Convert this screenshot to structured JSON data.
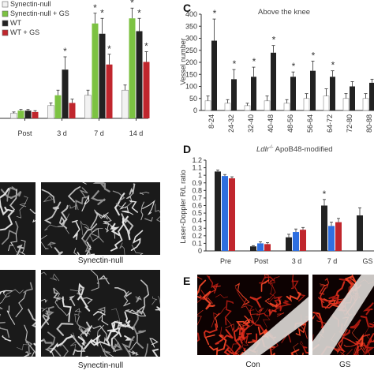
{
  "panels": {
    "c_letter": "C",
    "d_letter": "D",
    "e_letter": "E"
  },
  "legend_b": [
    {
      "label": "Synectin-null",
      "color": "#f2f2f2"
    },
    {
      "label": "Synectin-null + GS",
      "color": "#7cc242"
    },
    {
      "label": "WT",
      "color": "#222222"
    },
    {
      "label": "WT + GS",
      "color": "#c0262d"
    }
  ],
  "micro_captions": {
    "top": "Synectin-null",
    "bottom": "Synectin-null"
  },
  "panel_e_captions": [
    "Con",
    "GS"
  ],
  "chart_data": [
    {
      "id": "B",
      "type": "bar",
      "categories": [
        "Post",
        "3 d",
        "7 d",
        "14 d"
      ],
      "series": [
        {
          "name": "Synectin-null",
          "color": "#f2f2f2",
          "values": [
            0.2,
            0.5,
            0.9,
            1.1
          ]
        },
        {
          "name": "Synectin-null + GS",
          "color": "#7cc242",
          "values": [
            0.3,
            0.9,
            3.7,
            3.9
          ]
        },
        {
          "name": "WT",
          "color": "#222222",
          "values": [
            0.3,
            1.9,
            3.3,
            3.4
          ]
        },
        {
          "name": "WT + GS",
          "color": "#c0262d",
          "values": [
            0.25,
            0.6,
            2.1,
            2.2
          ]
        }
      ],
      "errors": [
        [
          0.05,
          0.1,
          0.2,
          0.2
        ],
        [
          0.05,
          0.2,
          0.4,
          0.4
        ],
        [
          0.05,
          0.5,
          0.6,
          0.5
        ],
        [
          0.05,
          0.15,
          0.4,
          0.4
        ]
      ],
      "stars": [
        [
          1,
          2
        ],
        [
          2,
          1
        ],
        [
          2,
          2
        ],
        [
          2,
          3
        ],
        [
          3,
          1
        ],
        [
          3,
          2
        ],
        [
          3,
          3
        ]
      ],
      "ylim": [
        0,
        4
      ]
    },
    {
      "id": "C",
      "type": "bar",
      "title": "Above the knee",
      "ylabel": "Vessel number",
      "categories": [
        "8-24",
        "24-32",
        "32-40",
        "40-48",
        "48-56",
        "56-64",
        "64-72",
        "72-80",
        "80-88"
      ],
      "series": [
        {
          "name": "",
          "color": "#ffffff",
          "values": [
            40,
            30,
            20,
            40,
            30,
            50,
            60,
            50,
            50
          ]
        },
        {
          "name": "",
          "color": "#222222",
          "values": [
            290,
            130,
            140,
            240,
            140,
            165,
            140,
            100,
            115
          ]
        }
      ],
      "errors": [
        [
          20,
          15,
          10,
          20,
          15,
          20,
          30,
          20,
          20
        ],
        [
          90,
          40,
          40,
          30,
          20,
          40,
          25,
          20,
          15
        ]
      ],
      "stars": [
        1,
        1,
        1,
        1,
        1,
        1,
        1,
        0,
        0
      ],
      "yticks": [
        0,
        50,
        100,
        150,
        200,
        250,
        300,
        350,
        400
      ],
      "ylim": [
        0,
        400
      ]
    },
    {
      "id": "D",
      "type": "bar",
      "title_prefix": "Ldlr",
      "title_sup": "-/-",
      "title_rest": " ApoB48-modified",
      "ylabel": "Laser-Doppler R/L ratio",
      "categories": [
        "Pre",
        "Post",
        "3 d",
        "7 d",
        "GS"
      ],
      "series": [
        {
          "name": "",
          "color": "#222222",
          "values": [
            1.05,
            0.06,
            0.18,
            0.6,
            0.47
          ]
        },
        {
          "name": "",
          "color": "#2f6fe0",
          "values": [
            0.99,
            0.1,
            0.25,
            0.33,
            0
          ]
        },
        {
          "name": "",
          "color": "#c0262d",
          "values": [
            0.96,
            0.09,
            0.28,
            0.38,
            0
          ]
        }
      ],
      "errors": [
        [
          0.02,
          0.01,
          0.04,
          0.08,
          0.1
        ],
        [
          0.02,
          0.02,
          0.04,
          0.05,
          0
        ],
        [
          0.02,
          0.02,
          0.03,
          0.05,
          0
        ]
      ],
      "stars": [
        [
          3,
          0
        ]
      ],
      "yticks": [
        "0",
        "0.1",
        "0.2",
        "0.3",
        "0.4",
        "0.5",
        "0.6",
        "0.7",
        "0.8",
        "0.9",
        "1",
        "1.1",
        "1.2"
      ],
      "ylim": [
        0,
        1.2
      ]
    }
  ]
}
